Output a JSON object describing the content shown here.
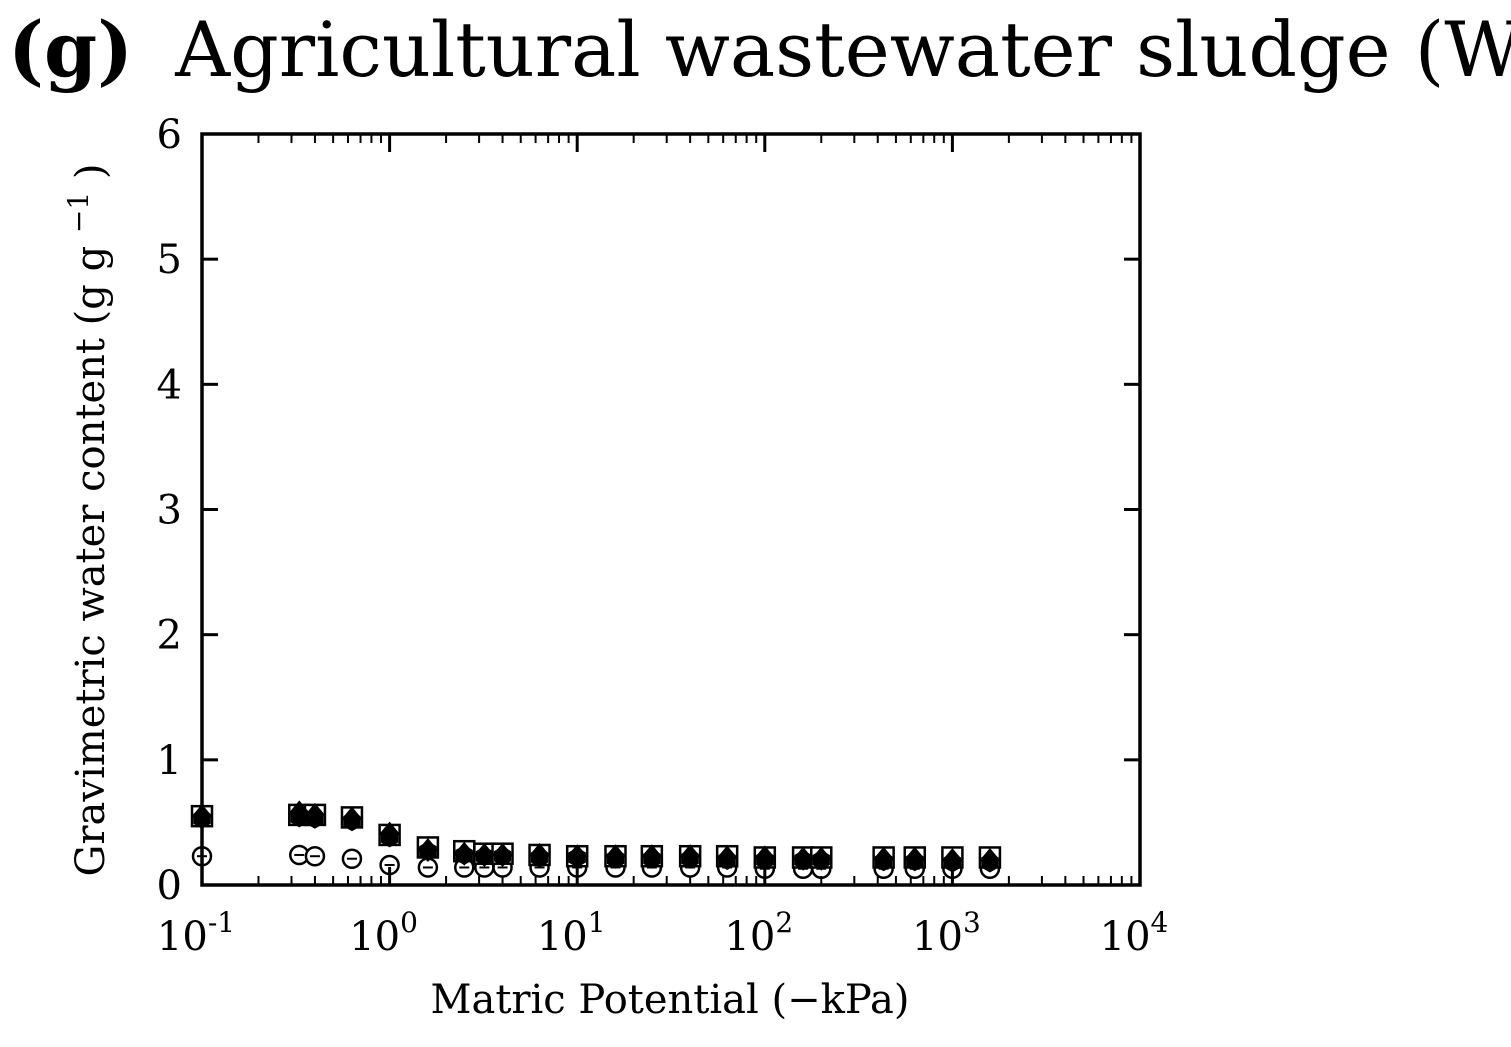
{
  "chart_data": {
    "type": "scatter",
    "title_prefix": "(g)",
    "title_main": "Agricultural wastewater sludge (WS)",
    "xlabel": "Matric Potential (−kPa)",
    "ylabel": "Gravimetric water content (g g",
    "ylabel_exp": "−1",
    "ylabel_close": ")",
    "xscale": "log",
    "xlim": [
      0.1,
      10000
    ],
    "ylim": [
      0,
      6
    ],
    "xticks": [
      {
        "value": 0.1,
        "base": "10",
        "exp": "-1"
      },
      {
        "value": 1,
        "base": "10",
        "exp": "0"
      },
      {
        "value": 10,
        "base": "10",
        "exp": "1"
      },
      {
        "value": 100,
        "base": "10",
        "exp": "2"
      },
      {
        "value": 1000,
        "base": "10",
        "exp": "3"
      },
      {
        "value": 10000,
        "base": "10",
        "exp": "4"
      }
    ],
    "yticks": [
      "0",
      "1",
      "2",
      "3",
      "4",
      "5",
      "6"
    ],
    "x": [
      0.1,
      0.33,
      0.4,
      0.63,
      1,
      1.6,
      2.5,
      3.2,
      4,
      6.3,
      10,
      16,
      25,
      40,
      63,
      100,
      160,
      200,
      430,
      630,
      1000,
      1585
    ],
    "series": [
      {
        "marker": "open-square",
        "values": [
          0.55,
          0.56,
          0.56,
          0.54,
          0.4,
          0.3,
          0.27,
          0.25,
          0.25,
          0.24,
          0.23,
          0.23,
          0.23,
          0.23,
          0.23,
          0.22,
          0.22,
          0.22,
          0.22,
          0.22,
          0.22,
          0.22
        ]
      },
      {
        "marker": "filled-diamond",
        "values": [
          0.55,
          0.58,
          0.56,
          0.53,
          0.41,
          0.28,
          0.25,
          0.24,
          0.24,
          0.24,
          0.23,
          0.23,
          0.23,
          0.23,
          0.22,
          0.22,
          0.21,
          0.21,
          0.21,
          0.21,
          0.2,
          0.2
        ]
      },
      {
        "marker": "filled-hexagon",
        "values": [
          0.53,
          0.54,
          0.53,
          0.51,
          0.38,
          0.27,
          0.24,
          0.23,
          0.23,
          0.22,
          0.22,
          0.21,
          0.21,
          0.21,
          0.2,
          0.2,
          0.2,
          0.2,
          0.19,
          0.19,
          0.18,
          0.18
        ]
      },
      {
        "marker": "open-circle",
        "values": [
          0.23,
          0.24,
          0.23,
          0.21,
          0.16,
          0.14,
          0.14,
          0.14,
          0.14,
          0.14,
          0.14,
          0.14,
          0.14,
          0.14,
          0.14,
          0.13,
          0.13,
          0.13,
          0.13,
          0.13,
          0.13,
          0.13
        ]
      }
    ]
  }
}
